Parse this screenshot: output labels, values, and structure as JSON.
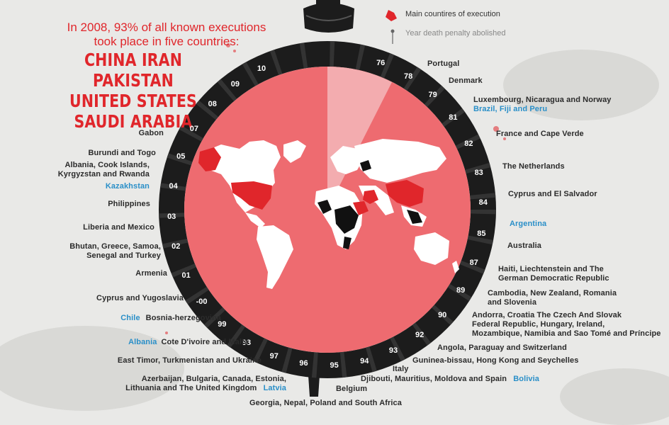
{
  "headline": {
    "line1": "In 2008, 93% of all known executions",
    "line2": "took place in five countries:"
  },
  "top_countries": {
    "line1": "CHINA  IRAN  PAKISTAN",
    "line2": "UNITED STATES",
    "line3": "SAUDI ARABIA"
  },
  "legend": {
    "main_countries": "Main countires of execution",
    "year_abolished": "Year death penalty abolished"
  },
  "colors": {
    "background": "#e9e9e7",
    "map_circle": "#ee6b70",
    "rope": "#1c1c1c",
    "main_countries": "#e0262b",
    "year_abolished_countries": "#111111",
    "other_countries": "#ffffff",
    "accent_blue": "#2a8fc8"
  },
  "years": [
    "76",
    "78",
    "79",
    "81",
    "82",
    "83",
    "84",
    "85",
    "87",
    "89",
    "90",
    "92",
    "93",
    "94",
    "95",
    "96",
    "97",
    "98",
    "99",
    "-00",
    "01",
    "02",
    "03",
    "04",
    "05",
    "07",
    "08",
    "09",
    "10"
  ],
  "labels": {
    "y76": "Portugal",
    "y78": "Denmark",
    "y79_a": "Luxembourg, Nicaragua and Norway",
    "y79_b": "Brazil, Fiji and Peru",
    "y81": "France and Cape Verde",
    "y82": "The Netherlands",
    "y83": "Cyprus and El Salvador",
    "y84": "Argentina",
    "y85": "Australia",
    "y87_a": "Haiti, Liechtenstein and The",
    "y87_b": "German Democratic Republic",
    "y89_a": "Cambodia, New Zealand, Romania",
    "y89_b": "and Slovenia",
    "y90_a": "Andorra, Croatia  The Czech And Slovak",
    "y90_b": "Federal Republic, Hungary, Ireland,",
    "y90_c": "Mozambique, Namibia and Sao Tomé and Príncipe",
    "y92": "Angola, Paraguay and Switzerland",
    "y93": "Guninea-bissau, Hong Kong and Seychelles",
    "y94": "Italy",
    "y95_a": "Djibouti, Mauritius, Moldova and Spain",
    "y95_b": "Bolivia",
    "y96": "Belgium",
    "y97": "Georgia, Nepal, Poland and South Africa",
    "y98_a": "Azerbaijan, Bulgaria, Canada, Estonia,",
    "y98_b": "Lithuania and The United Kingdom",
    "y98_c": "Latvia",
    "y99": "East Timor, Turkmenistan and Ukraine",
    "y00_a": "Albania",
    "y00_b": "Cote D'ivoire and Malta",
    "y01_a": "Chile",
    "y01_b": "Bosnia-herzegovina",
    "y02": "Cyprus and Yugoslavia",
    "y03": "Armenia",
    "y04_a": "Bhutan, Greece, Samoa,",
    "y04_b": "Senegal and Turkey",
    "y05": "Liberia and Mexico",
    "y07": "Philippines",
    "y08_a": "Albania, Cook Islands,",
    "y08_b": "Kyrgyzstan and Rwanda",
    "y08_c": "Kazakhstan",
    "y09": "Burundi and Togo",
    "y10": "Gabon"
  }
}
